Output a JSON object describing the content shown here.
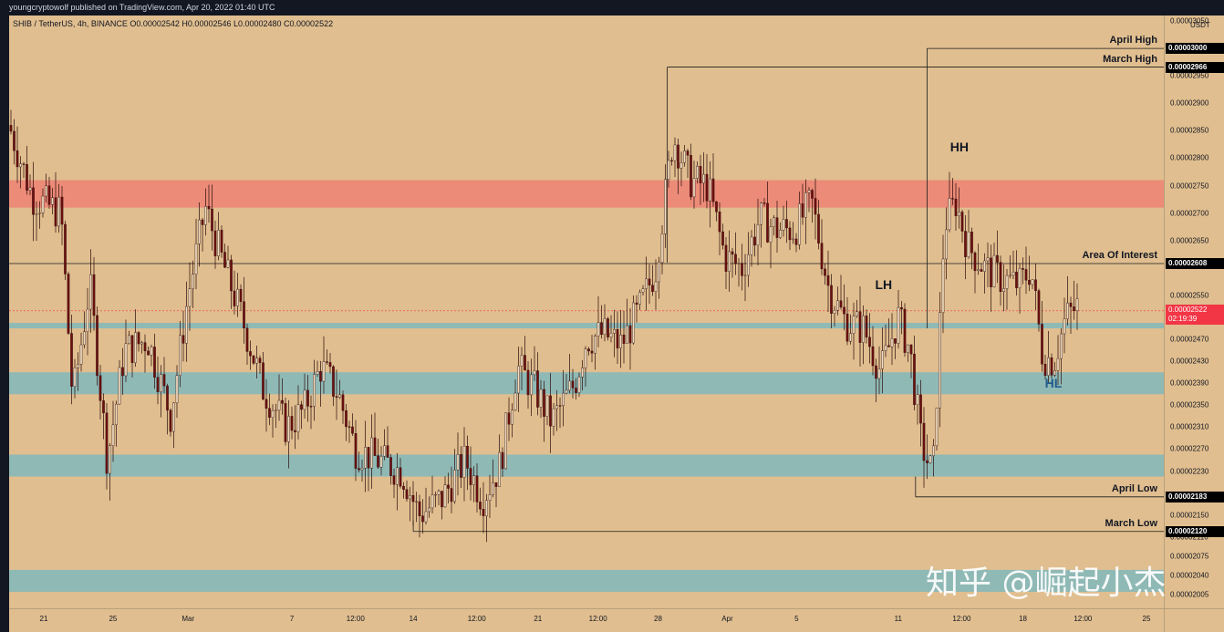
{
  "header": {
    "publisher_text": "youngcryptowolf published on TradingView.com, Apr 20, 2022 01:40 UTC"
  },
  "symbol_info": "SHIB / TetherUS, 4h, BINANCE  O0.00002542  H0.00002546  L0.00002480  C0.00002522",
  "watermark": "知乎 @崛起小杰",
  "colors": {
    "background": "#e0be8f",
    "red_zone": "#eb8b78",
    "teal_zone": "#8fb9b5",
    "candle_body": "#6e0f0f",
    "candle_wick": "#2a0a0a"
  },
  "chart_data": {
    "type": "candlestick",
    "symbol": "SHIB / TetherUS",
    "timeframe": "4h",
    "exchange": "BINANCE",
    "ohlc": {
      "open": 2.542e-05,
      "high": 2.546e-05,
      "low": 2.48e-05,
      "close": 2.522e-05
    },
    "y_axis": {
      "currency": "USDT",
      "ylim": [
        1.98e-05,
        3.06e-05
      ],
      "ticks": [
        "0.00003050",
        "0.00002950",
        "0.00002900",
        "0.00002850",
        "0.00002800",
        "0.00002750",
        "0.00002700",
        "0.00002650",
        "0.00002550",
        "0.00002470",
        "0.00002430",
        "0.00002390",
        "0.00002350",
        "0.00002310",
        "0.00002270",
        "0.00002230",
        "0.00002150",
        "0.00002110",
        "0.00002075",
        "0.00002040",
        "0.00002005"
      ],
      "tick_values": [
        3.05e-05,
        2.95e-05,
        2.9e-05,
        2.85e-05,
        2.8e-05,
        2.75e-05,
        2.7e-05,
        2.65e-05,
        2.55e-05,
        2.47e-05,
        2.43e-05,
        2.39e-05,
        2.35e-05,
        2.31e-05,
        2.27e-05,
        2.23e-05,
        2.15e-05,
        2.11e-05,
        2.075e-05,
        2.04e-05,
        2.005e-05
      ]
    },
    "x_axis": {
      "tick_labels": [
        "21",
        "25",
        "Mar",
        "7",
        "12:00",
        "14",
        "12:00",
        "21",
        "12:00",
        "28",
        "Apr",
        "5",
        "11",
        "12:00",
        "18",
        "12:00",
        "25"
      ],
      "tick_positions": [
        0.03,
        0.09,
        0.155,
        0.245,
        0.3,
        0.35,
        0.405,
        0.458,
        0.51,
        0.562,
        0.622,
        0.682,
        0.77,
        0.825,
        0.878,
        0.93,
        0.985
      ]
    },
    "price_labels": [
      {
        "text": "0.00003000",
        "value": 3e-05,
        "kind": "black"
      },
      {
        "text": "0.00002966",
        "value": 2.966e-05,
        "kind": "black"
      },
      {
        "text": "0.00002608",
        "value": 2.608e-05,
        "kind": "black"
      },
      {
        "text": "0.00002522",
        "sub": "02:19:39",
        "value": 2.522e-05,
        "kind": "red"
      },
      {
        "text": "0.00002183",
        "value": 2.183e-05,
        "kind": "black"
      },
      {
        "text": "0.00002120",
        "value": 2.12e-05,
        "kind": "black"
      }
    ],
    "zones": [
      {
        "color": "red",
        "from": 2.71e-05,
        "to": 2.76e-05
      },
      {
        "color": "teal",
        "from": 2.49e-05,
        "to": 2.5e-05
      },
      {
        "color": "teal",
        "from": 2.37e-05,
        "to": 2.41e-05
      },
      {
        "color": "teal",
        "from": 2.22e-05,
        "to": 2.26e-05
      },
      {
        "color": "teal",
        "from": 2.01e-05,
        "to": 2.05e-05
      }
    ],
    "levels": [
      {
        "label": "April High",
        "value": 3e-05,
        "x_start": 0.795
      },
      {
        "label": "March High",
        "value": 2.966e-05,
        "x_start": 0.57
      },
      {
        "label": "Area Of Interest",
        "value": 2.608e-05,
        "x_start": 0.0
      },
      {
        "label": "April Low",
        "value": 2.183e-05,
        "x_start": 0.785
      },
      {
        "label": "March Low",
        "value": 2.12e-05,
        "x_start": 0.35
      }
    ],
    "annotations": [
      {
        "text": "HH",
        "x": 0.815,
        "value": 2.82e-05
      },
      {
        "text": "LH",
        "x": 0.75,
        "value": 2.57e-05
      },
      {
        "text": "HL",
        "x": 0.897,
        "value": 2.39e-05
      }
    ],
    "current_price": 2.522e-05,
    "series_anchors": [
      [
        0.0,
        2.86e-05
      ],
      [
        0.02,
        2.73e-05
      ],
      [
        0.045,
        2.7e-05
      ],
      [
        0.055,
        2.36e-05
      ],
      [
        0.07,
        2.57e-05
      ],
      [
        0.085,
        2.25e-05
      ],
      [
        0.1,
        2.45e-05
      ],
      [
        0.12,
        2.47e-05
      ],
      [
        0.14,
        2.33e-05
      ],
      [
        0.155,
        2.55e-05
      ],
      [
        0.17,
        2.71e-05
      ],
      [
        0.185,
        2.61e-05
      ],
      [
        0.2,
        2.52e-05
      ],
      [
        0.22,
        2.38e-05
      ],
      [
        0.24,
        2.31e-05
      ],
      [
        0.255,
        2.34e-05
      ],
      [
        0.27,
        2.42e-05
      ],
      [
        0.285,
        2.37e-05
      ],
      [
        0.3,
        2.27e-05
      ],
      [
        0.32,
        2.25e-05
      ],
      [
        0.34,
        2.23e-05
      ],
      [
        0.355,
        2.15e-05
      ],
      [
        0.375,
        2.18e-05
      ],
      [
        0.395,
        2.25e-05
      ],
      [
        0.41,
        2.18e-05
      ],
      [
        0.425,
        2.24e-05
      ],
      [
        0.44,
        2.42e-05
      ],
      [
        0.455,
        2.38e-05
      ],
      [
        0.47,
        2.32e-05
      ],
      [
        0.49,
        2.39e-05
      ],
      [
        0.5,
        2.47e-05
      ],
      [
        0.515,
        2.48e-05
      ],
      [
        0.53,
        2.46e-05
      ],
      [
        0.545,
        2.52e-05
      ],
      [
        0.56,
        2.6e-05
      ],
      [
        0.575,
        2.84e-05
      ],
      [
        0.59,
        2.76e-05
      ],
      [
        0.605,
        2.75e-05
      ],
      [
        0.62,
        2.62e-05
      ],
      [
        0.635,
        2.6e-05
      ],
      [
        0.65,
        2.69e-05
      ],
      [
        0.665,
        2.67e-05
      ],
      [
        0.68,
        2.67e-05
      ],
      [
        0.695,
        2.72e-05
      ],
      [
        0.71,
        2.56e-05
      ],
      [
        0.725,
        2.5e-05
      ],
      [
        0.74,
        2.49e-05
      ],
      [
        0.755,
        2.41e-05
      ],
      [
        0.77,
        2.51e-05
      ],
      [
        0.78,
        2.45e-05
      ],
      [
        0.79,
        2.28e-05
      ],
      [
        0.8,
        2.22e-05
      ],
      [
        0.81,
        2.68e-05
      ],
      [
        0.82,
        2.72e-05
      ],
      [
        0.83,
        2.64e-05
      ],
      [
        0.845,
        2.6e-05
      ],
      [
        0.86,
        2.58e-05
      ],
      [
        0.875,
        2.57e-05
      ],
      [
        0.885,
        2.6e-05
      ],
      [
        0.895,
        2.44e-05
      ],
      [
        0.905,
        2.43e-05
      ],
      [
        0.915,
        2.51e-05
      ],
      [
        0.925,
        2.53e-05
      ]
    ]
  }
}
